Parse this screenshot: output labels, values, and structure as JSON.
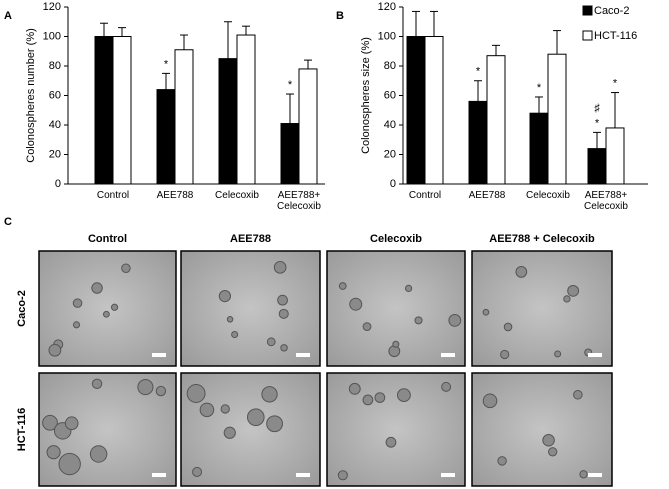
{
  "chart_data": [
    {
      "type": "bar",
      "panel": "A",
      "y_label": "Colonospheres number  (%)",
      "categories": [
        "Control",
        "AEE788",
        "Celecoxib",
        "AEE788+\nCelecoxib"
      ],
      "ylim": [
        0,
        120
      ],
      "yticks": [
        0,
        20,
        40,
        60,
        80,
        100,
        120
      ],
      "series": [
        {
          "color": "#000000",
          "values": [
            100,
            64,
            85,
            41
          ],
          "errors": [
            9,
            11,
            25,
            20
          ],
          "markers": [
            null,
            [
              "*"
            ],
            null,
            [
              "*"
            ]
          ]
        },
        {
          "color": "#ffffff",
          "values": [
            100,
            91,
            101,
            78
          ],
          "errors": [
            6,
            10,
            6,
            6
          ],
          "markers": [
            null,
            null,
            null,
            null
          ]
        }
      ]
    },
    {
      "type": "bar",
      "panel": "B",
      "y_label": "Colonospheres size  (%)",
      "categories": [
        "Control",
        "AEE788",
        "Celecoxib",
        "AEE788+\nCelecoxib"
      ],
      "ylim": [
        0,
        120
      ],
      "yticks": [
        0,
        20,
        40,
        60,
        80,
        100,
        120
      ],
      "legend": "upper right",
      "series": [
        {
          "name": "Caco-2",
          "color": "#000000",
          "values": [
            100,
            56,
            48,
            24
          ],
          "errors": [
            17,
            14,
            11,
            11
          ],
          "markers": [
            null,
            [
              "*"
            ],
            [
              "*"
            ],
            [
              "*",
              "♯"
            ]
          ]
        },
        {
          "name": "HCT-116",
          "color": "#ffffff",
          "values": [
            100,
            87,
            88,
            38
          ],
          "errors": [
            17,
            7,
            16,
            24
          ],
          "markers": [
            null,
            null,
            null,
            [
              "*"
            ]
          ]
        }
      ]
    }
  ],
  "panel_c": {
    "label": "C",
    "columns": [
      "Control",
      "AEE788",
      "Celecoxib",
      "AEE788 + Celecoxib"
    ],
    "rows": [
      "Caco-2",
      "HCT-116"
    ]
  }
}
